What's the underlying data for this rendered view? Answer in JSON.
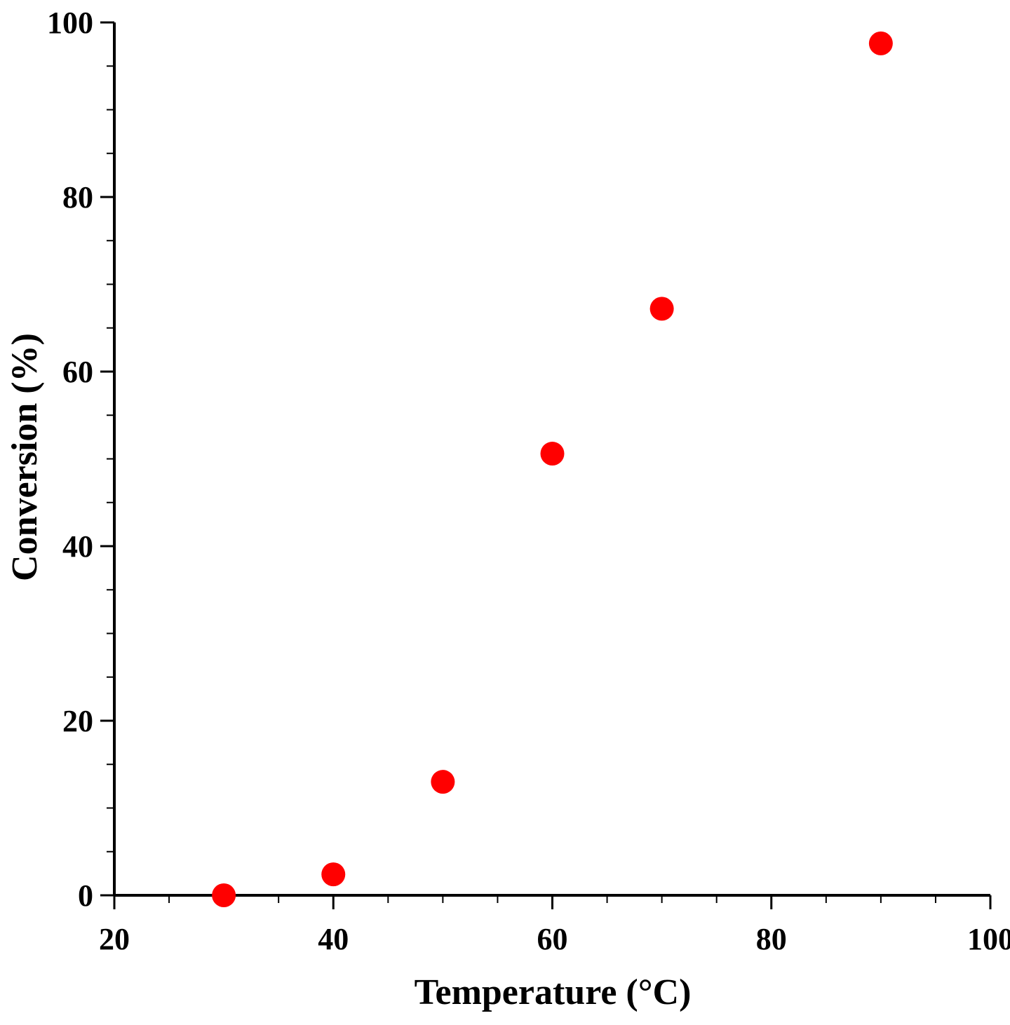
{
  "chart_data": {
    "type": "scatter",
    "title": "",
    "xlabel": "Temperature (°C)",
    "ylabel": "Conversion (%)",
    "xlim": [
      20,
      100
    ],
    "ylim": [
      0,
      100
    ],
    "x_ticks": [
      "20",
      "40",
      "60",
      "80",
      "100"
    ],
    "y_ticks": [
      "0",
      "20",
      "40",
      "60",
      "80",
      "100"
    ],
    "grid": false,
    "legend": "none",
    "marker_color": "#ff0000",
    "series": [
      {
        "x": [
          30,
          40,
          50,
          60,
          70,
          90
        ],
        "y": [
          0,
          2.4,
          13,
          50.6,
          67.2,
          97.6
        ]
      }
    ]
  }
}
